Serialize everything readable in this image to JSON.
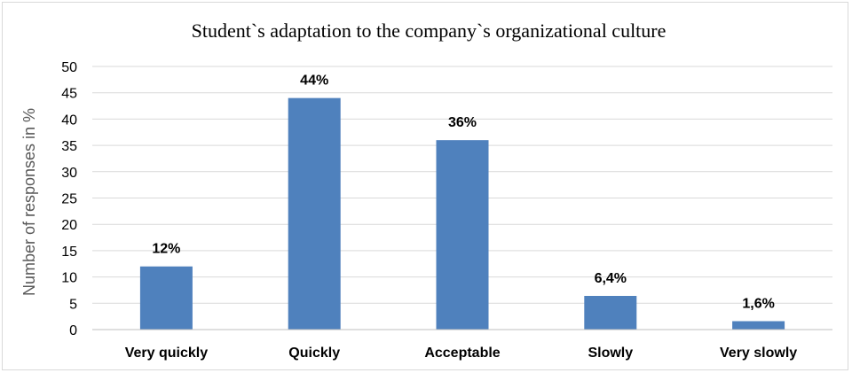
{
  "chart_data": {
    "type": "bar",
    "title": "Student`s adaptation to the company`s organizational culture",
    "xlabel": "",
    "ylabel": "Number of responses in %",
    "categories": [
      "Very quickly",
      "Quickly",
      "Acceptable",
      "Slowly",
      "Very slowly"
    ],
    "values": [
      12,
      44,
      36,
      6.4,
      1.6
    ],
    "data_labels": [
      "12%",
      "44%",
      "36%",
      "6,4%",
      "1,6%"
    ],
    "ylim": [
      0,
      50
    ],
    "yticks": [
      "0",
      "5",
      "10",
      "15",
      "20",
      "25",
      "30",
      "35",
      "40",
      "45",
      "50"
    ],
    "grid": true,
    "legend": "none",
    "bar_color": "#4f81bd",
    "grid_color": "#d9d9d9"
  }
}
